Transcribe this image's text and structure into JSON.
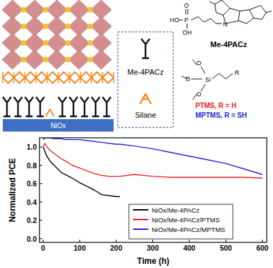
{
  "chart_data": {
    "type": "line",
    "x_label": "Time (h)",
    "y_label": "Normalized PCE",
    "x": [
      0,
      5,
      10,
      20,
      30,
      40,
      50,
      60,
      80,
      100,
      120,
      140,
      160,
      180,
      200,
      210,
      250,
      300,
      350,
      400,
      450,
      500,
      550,
      600
    ],
    "series": [
      {
        "name": "NiOx/Me-4PACz",
        "color": "#000000",
        "values": [
          1.0,
          0.95,
          0.9,
          0.84,
          0.8,
          0.76,
          0.72,
          0.7,
          0.66,
          0.61,
          0.57,
          0.53,
          0.48,
          0.47,
          0.46,
          0.46,
          null,
          null,
          null,
          null,
          null,
          null,
          null,
          null
        ]
      },
      {
        "name": "NiOx/Me-4PACz/PTMS",
        "color": "#e8211d",
        "values": [
          1.0,
          1.04,
          1.0,
          0.96,
          0.93,
          0.9,
          0.87,
          0.85,
          0.8,
          0.77,
          0.74,
          0.71,
          0.69,
          0.68,
          0.68,
          0.68,
          0.7,
          0.68,
          0.67,
          0.67,
          0.67,
          0.67,
          0.67,
          0.66
        ]
      },
      {
        "name": "NiOx/Me-4PACz/MPTMS",
        "color": "#1f1fe0",
        "values": [
          1.08,
          1.1,
          1.1,
          1.1,
          1.09,
          1.09,
          1.09,
          1.08,
          1.08,
          1.08,
          1.07,
          1.06,
          1.05,
          1.04,
          1.03,
          1.03,
          1.01,
          0.98,
          0.94,
          0.9,
          0.86,
          0.82,
          0.76,
          0.7
        ]
      }
    ],
    "xlim": [
      -10,
      612
    ],
    "xticks": [
      0,
      100,
      200,
      300,
      400,
      500,
      600
    ],
    "ylim": [
      -0.04,
      1.1
    ],
    "yticks": [
      {
        "value": 0,
        "label": "0.0"
      },
      0.2,
      0.4,
      0.6,
      0.8,
      {
        "value": 1,
        "label": "1.0"
      }
    ],
    "legend": "lower center",
    "grid": false
  },
  "diagram": {
    "substrate": "NiOx",
    "box_labels": [
      "Me-4PACz",
      "Silane"
    ],
    "me4pacz": {
      "name": "Me-4PACz",
      "atoms": [
        "O",
        "P",
        "HO",
        "OH",
        "N"
      ]
    },
    "silane": {
      "atoms": [
        "O",
        "O",
        "O",
        "Si",
        "R"
      ],
      "variants": [
        {
          "text": "PTMS, R = H",
          "color": "#e8211d"
        },
        {
          "text": "MPTMS, R = SH",
          "color": "#1f1fd6"
        }
      ]
    }
  }
}
